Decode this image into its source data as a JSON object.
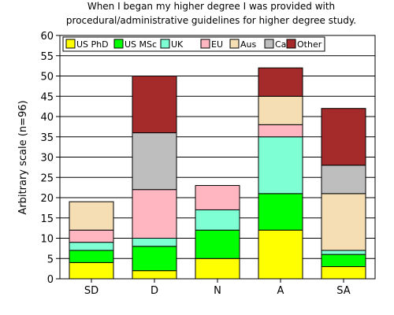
{
  "chart_data": {
    "type": "bar",
    "stacked": true,
    "title": [
      "When I began my higher degree I was provided with",
      "procedural/administrative guidelines for higher degree study."
    ],
    "xlabel": "",
    "ylabel": "Arbitrary scale (n=96)",
    "ylim": [
      0,
      60
    ],
    "yticks": [
      0,
      5,
      10,
      15,
      20,
      25,
      30,
      35,
      40,
      45,
      50,
      55,
      60
    ],
    "grid": true,
    "legend_position": "top",
    "categories": [
      "SD",
      "D",
      "N",
      "A",
      "SA"
    ],
    "series": [
      {
        "name": "US PhD",
        "color": "#ffff00",
        "values": [
          4,
          2,
          5,
          12,
          3
        ]
      },
      {
        "name": "US MSc",
        "color": "#00ff00",
        "values": [
          3,
          6,
          7,
          9,
          3
        ]
      },
      {
        "name": "UK",
        "color": "#7fffd4",
        "values": [
          2,
          2,
          5,
          14,
          1
        ]
      },
      {
        "name": "EU",
        "color": "#ffb6c1",
        "values": [
          3,
          12,
          6,
          3,
          0
        ]
      },
      {
        "name": "Aus",
        "color": "#f5deb3",
        "values": [
          7,
          0,
          0,
          7,
          14
        ]
      },
      {
        "name": "Ca",
        "color": "#bebebe",
        "values": [
          0,
          14,
          0,
          0,
          7
        ]
      },
      {
        "name": "Other",
        "color": "#a52a2a",
        "values": [
          0,
          14,
          0,
          7,
          14
        ]
      }
    ]
  }
}
